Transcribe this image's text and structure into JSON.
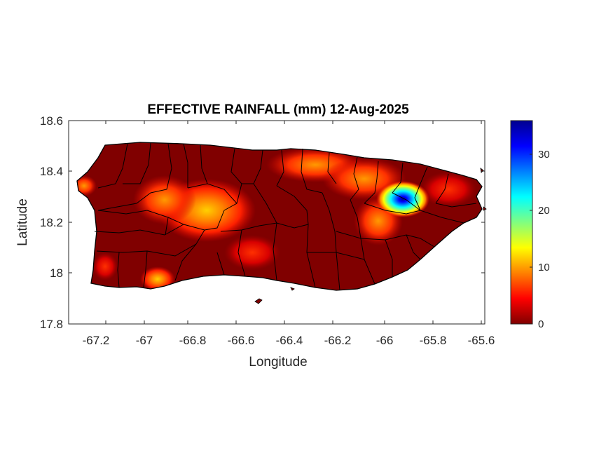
{
  "map": {
    "title": "EFFECTIVE RAINFALL (mm) 12-Aug-2025",
    "xlabel": "Longitude",
    "ylabel": "Latitude",
    "x_ticks": [
      "-67.2",
      "-67",
      "-66.8",
      "-66.6",
      "-66.4",
      "-66.2",
      "-66",
      "-65.8",
      "-65.6"
    ],
    "y_ticks": [
      "18.6",
      "18.4",
      "18.2",
      "18",
      "17.8"
    ],
    "xlim": [
      -67.3,
      -65.58
    ],
    "ylim": [
      17.8,
      18.6
    ],
    "colorbar": {
      "ticks": [
        "0",
        "10",
        "20",
        "30"
      ],
      "range": [
        0,
        36
      ],
      "colormap": "jet",
      "colors": [
        "#800000",
        "#ff0000",
        "#ff8000",
        "#ffff00",
        "#80ff80",
        "#00ffff",
        "#0080ff",
        "#0000ff",
        "#00008f"
      ]
    },
    "region": "Puerto Rico",
    "land_base_color": "#800000",
    "rain_maxima": [
      {
        "lon": -65.92,
        "lat": 18.29,
        "value": 35
      },
      {
        "lon": -66.93,
        "lat": 17.96,
        "value": 12
      },
      {
        "lon": -66.75,
        "lat": 18.17,
        "value": 10
      },
      {
        "lon": -66.86,
        "lat": 18.25,
        "value": 8
      }
    ]
  }
}
